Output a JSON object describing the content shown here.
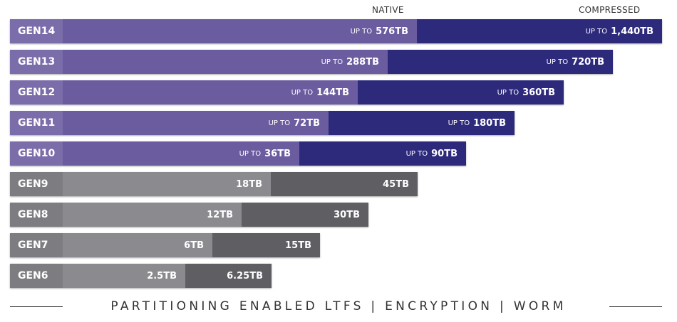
{
  "chart_data": {
    "type": "bar",
    "orientation": "horizontal",
    "stacked": true,
    "legend": [
      "NATIVE",
      "COMPRESSED"
    ],
    "categories": [
      "GEN14",
      "GEN13",
      "GEN12",
      "GEN11",
      "GEN10",
      "GEN9",
      "GEN8",
      "GEN7",
      "GEN6"
    ],
    "series": [
      {
        "name": "NATIVE",
        "values": [
          576,
          288,
          144,
          72,
          36,
          18,
          12,
          6,
          2.5
        ],
        "labels": [
          "576TB",
          "288TB",
          "144TB",
          "72TB",
          "36TB",
          "18TB",
          "12TB",
          "6TB",
          "2.5TB"
        ]
      },
      {
        "name": "COMPRESSED",
        "values": [
          1440,
          720,
          360,
          180,
          90,
          45,
          30,
          15,
          6.25
        ],
        "labels": [
          "1,440TB",
          "720TB",
          "360TB",
          "180TB",
          "90TB",
          "45TB",
          "30TB",
          "15TB",
          "6.25TB"
        ]
      }
    ],
    "prefix": "UP TO",
    "prefixed_generations": [
      "GEN14",
      "GEN13",
      "GEN12",
      "GEN11",
      "GEN10"
    ],
    "colors": {
      "future_label": "#7b6caa",
      "future_native": "#6b5c9f",
      "future_compressed": "#2d2a7c",
      "past_label": "#7d7d81",
      "past_native": "#8b8b8f",
      "past_compressed": "#5e5e63"
    },
    "footer": "PARTITIONING ENABLED LTFS  |  ENCRYPTION  |  WORM"
  }
}
